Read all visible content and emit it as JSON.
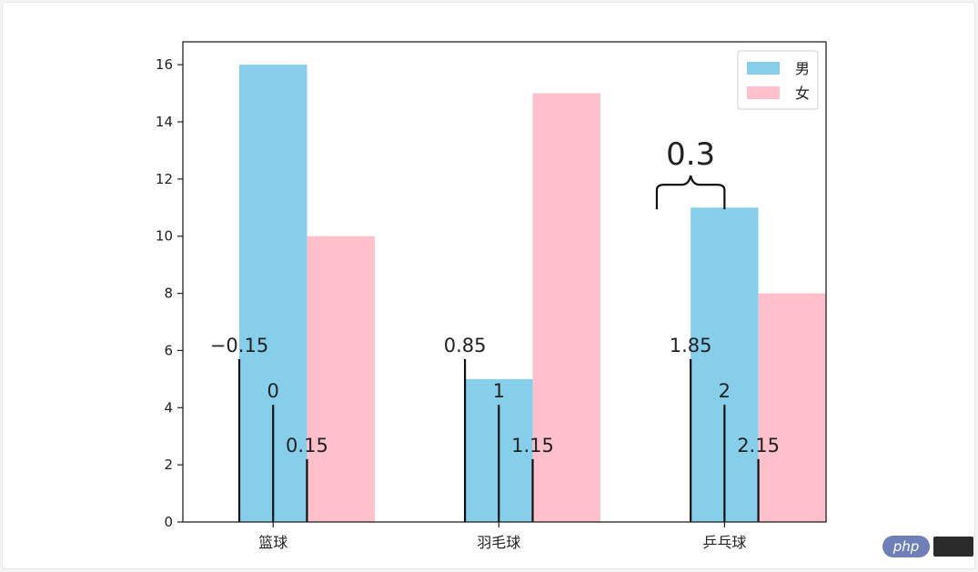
{
  "chart_data": {
    "type": "bar",
    "categories": [
      "篮球",
      "羽毛球",
      "乒乓球"
    ],
    "series": [
      {
        "name": "男",
        "values": [
          16,
          5,
          11
        ],
        "color": "#87CEEB"
      },
      {
        "name": "女",
        "values": [
          10,
          15,
          8
        ],
        "color": "#FFC0CB"
      }
    ],
    "ylim": [
      0,
      16.8
    ],
    "yticks": [
      0,
      2,
      4,
      6,
      8,
      10,
      12,
      14,
      16
    ],
    "legend": "top-right",
    "grid": false,
    "annotations": [
      {
        "label": "−0.15",
        "x": -0.15,
        "line_top": 5.7
      },
      {
        "label": "0",
        "x": 0,
        "line_top": 4.1
      },
      {
        "label": "0.15",
        "x": 0.15,
        "line_top": 2.2
      },
      {
        "label": "0.85",
        "x": 0.85,
        "line_top": 5.7
      },
      {
        "label": "1",
        "x": 1,
        "line_top": 4.1
      },
      {
        "label": "1.15",
        "x": 1.15,
        "line_top": 2.2
      },
      {
        "label": "1.85",
        "x": 1.85,
        "line_top": 5.7
      },
      {
        "label": "2",
        "x": 2,
        "line_top": 4.1
      },
      {
        "label": "2.15",
        "x": 2.15,
        "line_top": 2.2
      }
    ],
    "brace": {
      "label": "0.3",
      "x_start": 1.7,
      "x_end": 2.0,
      "y": 11.8
    }
  },
  "watermark": {
    "text": "php"
  }
}
